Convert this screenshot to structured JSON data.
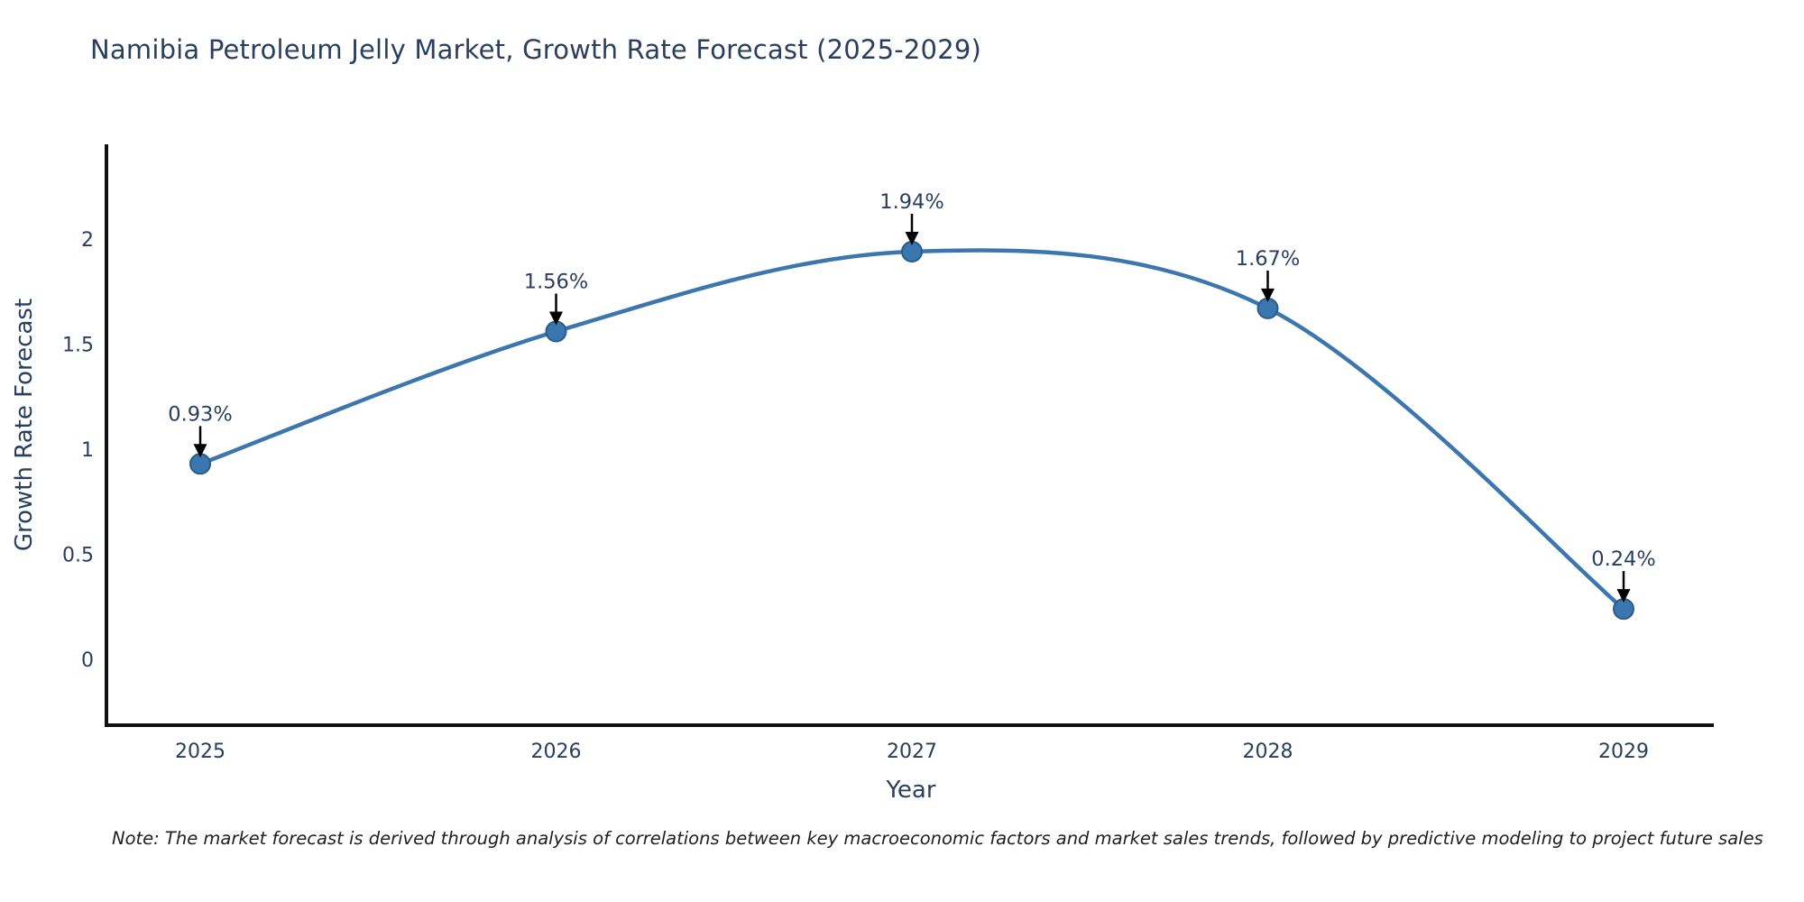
{
  "chart_data": {
    "type": "line",
    "title": "Namibia Petroleum Jelly Market, Growth Rate Forecast (2025-2029)",
    "xlabel": "Year",
    "ylabel": "Growth Rate Forecast",
    "x": [
      2025,
      2026,
      2027,
      2028,
      2029
    ],
    "series": [
      {
        "name": "Growth Rate Forecast",
        "values": [
          0.93,
          1.56,
          1.94,
          1.67,
          0.24
        ],
        "point_labels": [
          "0.93%",
          "1.56%",
          "1.94%",
          "1.67%",
          "0.24%"
        ]
      }
    ],
    "xtick_labels": [
      "2025",
      "2026",
      "2027",
      "2028",
      "2029"
    ],
    "ytick_values": [
      0,
      0.5,
      1,
      1.5,
      2
    ],
    "ytick_labels": [
      "0",
      "0.5",
      "1",
      "1.5",
      "2"
    ],
    "ylim": [
      -0.3,
      2.45
    ],
    "grid": false,
    "legend_position": "none",
    "curve": "spline",
    "colors": {
      "line": "#3d76af",
      "marker_fill": "#3a76b0",
      "marker_edge": "#2b5c88",
      "text": "#2a3f5f",
      "axis": "#111111",
      "arrow": "#000000"
    }
  },
  "note": "Note: The market forecast is derived through analysis of correlations between key macroeconomic factors and market sales trends, followed by predictive modeling to project future sales"
}
